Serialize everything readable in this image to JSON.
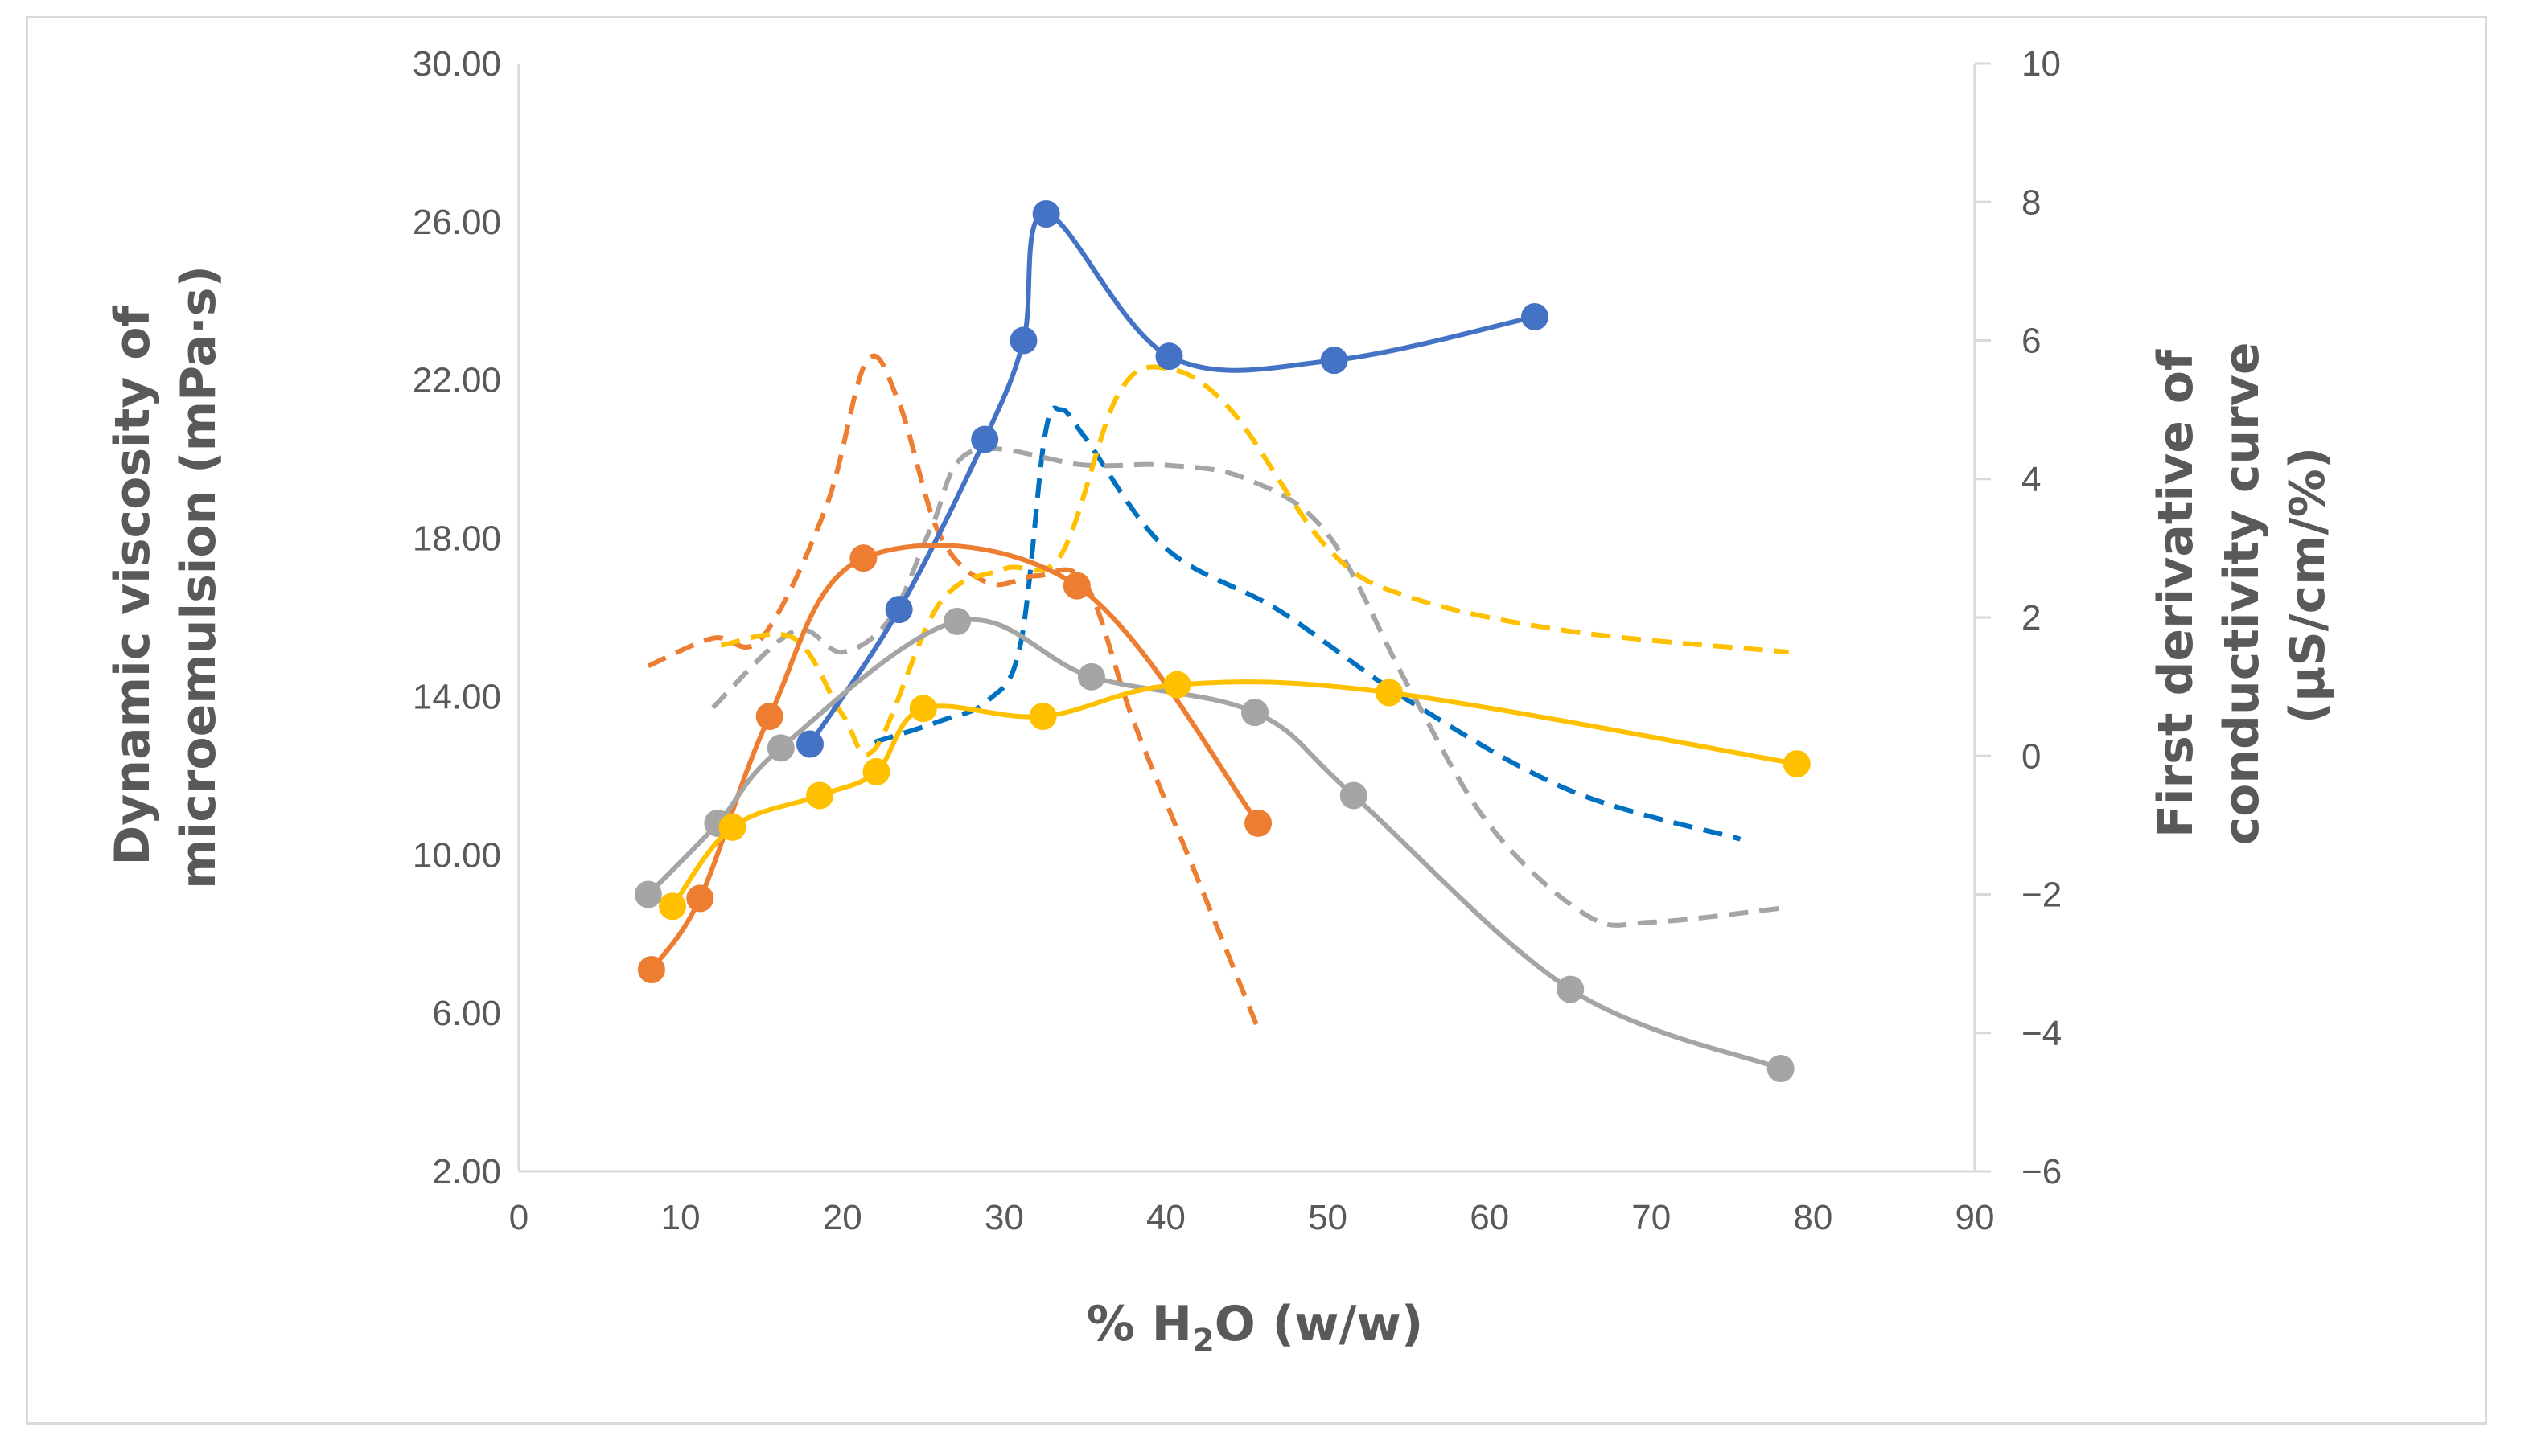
{
  "chart_data": {
    "type": "line",
    "title": "",
    "xlabel_parts": {
      "prefix": "% H",
      "subscript": "2",
      "suffix": "O (w/w)"
    },
    "ylabel_left": [
      "Dynamic viscosity of",
      "microemulsion (mPa·s)"
    ],
    "ylabel_right": [
      "First derivative of",
      "conductivity curve",
      "(µS/cm/%)"
    ],
    "xlim": [
      0,
      90
    ],
    "ylim_left": [
      2,
      30
    ],
    "ylim_right": [
      -6,
      10
    ],
    "x_ticks": [
      "0",
      "10",
      "20",
      "30",
      "40",
      "50",
      "60",
      "70",
      "80",
      "90"
    ],
    "y_left_ticks": [
      "2.00",
      "6.00",
      "10.00",
      "14.00",
      "18.00",
      "22.00",
      "26.00",
      "30.00"
    ],
    "y_right_ticks": [
      "−6",
      "−4",
      "−2",
      "0",
      "2",
      "4",
      "6",
      "8",
      "10"
    ],
    "gridlines": false,
    "legend": "none",
    "series": [
      {
        "name": "blue viscosity",
        "axis": "left",
        "style": "solid",
        "markers": true,
        "color": "#4472c4",
        "points": [
          [
            18,
            12.8
          ],
          [
            23.5,
            16.2
          ],
          [
            28.8,
            20.5
          ],
          [
            31.2,
            23.0
          ],
          [
            32.6,
            26.2
          ],
          [
            40.2,
            22.6
          ],
          [
            50.4,
            22.5
          ],
          [
            62.8,
            23.6
          ]
        ]
      },
      {
        "name": "orange viscosity",
        "axis": "left",
        "style": "solid",
        "markers": true,
        "color": "#ed7d31",
        "points": [
          [
            8.2,
            7.1
          ],
          [
            11.2,
            8.9
          ],
          [
            15.5,
            13.5
          ],
          [
            21.3,
            17.5
          ],
          [
            34.5,
            16.8
          ],
          [
            45.7,
            10.8
          ]
        ]
      },
      {
        "name": "gray viscosity",
        "axis": "left",
        "style": "solid",
        "markers": true,
        "color": "#a5a5a5",
        "points": [
          [
            8,
            9.0
          ],
          [
            12.3,
            10.8
          ],
          [
            16.2,
            12.7
          ],
          [
            27.1,
            15.9
          ],
          [
            35.4,
            14.5
          ],
          [
            45.5,
            13.6
          ],
          [
            51.6,
            11.5
          ],
          [
            65,
            6.6
          ],
          [
            78,
            4.6
          ]
        ]
      },
      {
        "name": "yellow viscosity",
        "axis": "left",
        "style": "solid",
        "markers": true,
        "color": "#ffc000",
        "points": [
          [
            9.5,
            8.7
          ],
          [
            13.2,
            10.7
          ],
          [
            18.6,
            11.5
          ],
          [
            22.1,
            12.1
          ],
          [
            25,
            13.7
          ],
          [
            32.4,
            13.5
          ],
          [
            40.7,
            14.3
          ],
          [
            53.8,
            14.1
          ],
          [
            79,
            12.3
          ]
        ]
      },
      {
        "name": "blue conductivity derivative",
        "axis": "right",
        "style": "dashed",
        "markers": false,
        "color": "#0070c0",
        "points": [
          [
            22,
            0.2
          ],
          [
            26,
            0.5
          ],
          [
            29,
            0.8
          ],
          [
            31,
            1.6
          ],
          [
            32.5,
            4.6
          ],
          [
            33.5,
            5.0
          ],
          [
            35,
            4.6
          ],
          [
            40,
            3.0
          ],
          [
            47,
            2.1
          ],
          [
            55,
            0.8
          ],
          [
            65,
            -0.5
          ],
          [
            75.5,
            -1.2
          ]
        ]
      },
      {
        "name": "orange conductivity derivative",
        "axis": "right",
        "style": "dashed",
        "markers": false,
        "color": "#ed7d31",
        "points": [
          [
            8,
            1.3
          ],
          [
            12,
            1.7
          ],
          [
            15,
            1.7
          ],
          [
            19,
            3.6
          ],
          [
            21.5,
            5.7
          ],
          [
            23.5,
            5.1
          ],
          [
            26,
            3.2
          ],
          [
            29,
            2.5
          ],
          [
            32,
            2.6
          ],
          [
            35,
            2.5
          ],
          [
            38,
            0.5
          ],
          [
            42,
            -1.8
          ],
          [
            45.8,
            -4.0
          ]
        ]
      },
      {
        "name": "gray conductivity derivative",
        "axis": "right",
        "style": "dashed",
        "markers": false,
        "color": "#a5a5a5",
        "points": [
          [
            12,
            0.7
          ],
          [
            17,
            1.8
          ],
          [
            20,
            1.5
          ],
          [
            23,
            2.0
          ],
          [
            25.5,
            3.3
          ],
          [
            28,
            4.4
          ],
          [
            35,
            4.2
          ],
          [
            40,
            4.2
          ],
          [
            45,
            4.0
          ],
          [
            50,
            3.2
          ],
          [
            55,
            1.0
          ],
          [
            60,
            -1.0
          ],
          [
            66,
            -2.3
          ],
          [
            70,
            -2.4
          ],
          [
            78,
            -2.2
          ]
        ]
      },
      {
        "name": "yellow conductivity derivative",
        "axis": "right",
        "style": "dashed",
        "markers": false,
        "color": "#ffc000",
        "points": [
          [
            12.5,
            1.6
          ],
          [
            17,
            1.7
          ],
          [
            20,
            0.6
          ],
          [
            22,
            0.1
          ],
          [
            26,
            2.2
          ],
          [
            30,
            2.7
          ],
          [
            33.5,
            2.9
          ],
          [
            37,
            5.2
          ],
          [
            40,
            5.6
          ],
          [
            44,
            5.0
          ],
          [
            50,
            3.0
          ],
          [
            55,
            2.3
          ],
          [
            65,
            1.8
          ],
          [
            78.5,
            1.5
          ]
        ]
      }
    ]
  }
}
